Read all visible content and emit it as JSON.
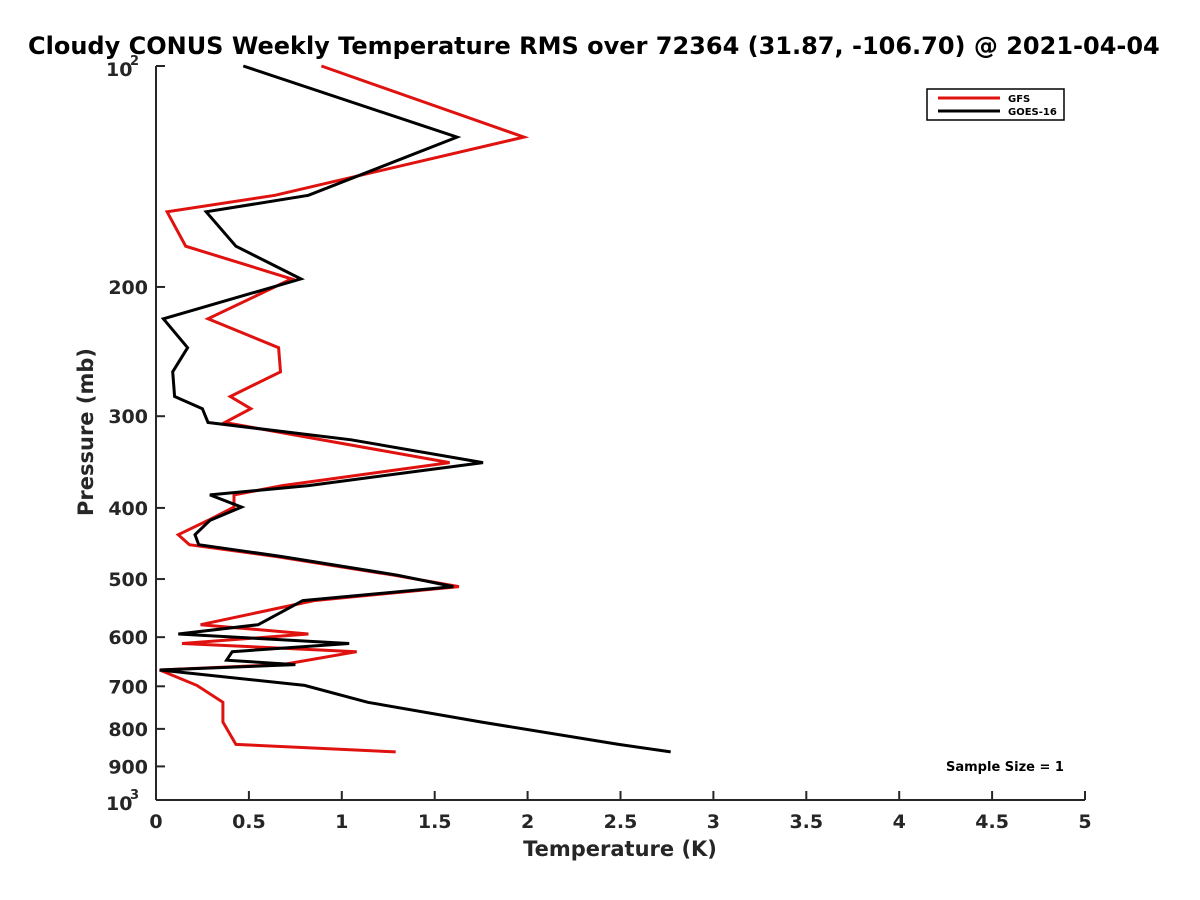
{
  "chart_data": {
    "type": "line",
    "title": "Cloudy CONUS Weekly Temperature RMS over 72364 (31.87, -106.70) @ 2021-04-04",
    "xlabel": "Temperature (K)",
    "ylabel": "Pressure (mb)",
    "xlim": [
      0,
      5
    ],
    "ylim": [
      1000,
      100
    ],
    "yscale": "log",
    "x_ticks": [
      "0",
      "0.5",
      "1",
      "1.5",
      "2",
      "2.5",
      "3",
      "3.5",
      "4",
      "4.5",
      "5"
    ],
    "y_ticks": [
      {
        "value": 100,
        "base": "10",
        "exp": "2"
      },
      {
        "value": 200,
        "label": "200"
      },
      {
        "value": 300,
        "label": "300"
      },
      {
        "value": 400,
        "label": "400"
      },
      {
        "value": 500,
        "label": "500"
      },
      {
        "value": 600,
        "label": "600"
      },
      {
        "value": 700,
        "label": "700"
      },
      {
        "value": 800,
        "label": "800"
      },
      {
        "value": 900,
        "label": "900"
      },
      {
        "value": 1000,
        "base": "10",
        "exp": "3"
      }
    ],
    "legend_position": "top-right",
    "annotation": "Sample Size = 1",
    "series": [
      {
        "name": "GFS",
        "color": "#e0120f",
        "points": [
          [
            0.89,
            100
          ],
          [
            1.98,
            125
          ],
          [
            0.64,
            150
          ],
          [
            0.06,
            158
          ],
          [
            0.16,
            176
          ],
          [
            0.73,
            195
          ],
          [
            0.28,
            221
          ],
          [
            0.66,
            242
          ],
          [
            0.67,
            261
          ],
          [
            0.4,
            282
          ],
          [
            0.51,
            293
          ],
          [
            0.37,
            306
          ],
          [
            1.58,
            347
          ],
          [
            0.68,
            373
          ],
          [
            0.42,
            384
          ],
          [
            0.42,
            399
          ],
          [
            0.28,
            416
          ],
          [
            0.12,
            435
          ],
          [
            0.18,
            449
          ],
          [
            0.65,
            466
          ],
          [
            1.28,
            494
          ],
          [
            1.63,
            512
          ],
          [
            0.85,
            535
          ],
          [
            0.24,
            577
          ],
          [
            0.82,
            594
          ],
          [
            0.14,
            612
          ],
          [
            1.08,
            628
          ],
          [
            0.68,
            654
          ],
          [
            0.02,
            665
          ],
          [
            0.22,
            698
          ],
          [
            0.36,
            736
          ],
          [
            0.36,
            783
          ],
          [
            0.43,
            840
          ],
          [
            1.29,
            860
          ]
        ]
      },
      {
        "name": "GOES-16",
        "color": "#000000",
        "points": [
          [
            0.47,
            100
          ],
          [
            1.62,
            125
          ],
          [
            0.82,
            150
          ],
          [
            0.27,
            158
          ],
          [
            0.43,
            176
          ],
          [
            0.78,
            195
          ],
          [
            0.04,
            221
          ],
          [
            0.17,
            242
          ],
          [
            0.09,
            261
          ],
          [
            0.1,
            282
          ],
          [
            0.25,
            293
          ],
          [
            0.28,
            306
          ],
          [
            1.05,
            323
          ],
          [
            1.76,
            347
          ],
          [
            0.82,
            373
          ],
          [
            0.29,
            384
          ],
          [
            0.46,
            399
          ],
          [
            0.29,
            416
          ],
          [
            0.21,
            435
          ],
          [
            0.23,
            449
          ],
          [
            0.68,
            466
          ],
          [
            1.3,
            494
          ],
          [
            1.6,
            512
          ],
          [
            0.79,
            535
          ],
          [
            0.55,
            577
          ],
          [
            0.12,
            594
          ],
          [
            1.04,
            612
          ],
          [
            0.41,
            628
          ],
          [
            0.38,
            645
          ],
          [
            0.75,
            654
          ],
          [
            0.02,
            665
          ],
          [
            0.8,
            698
          ],
          [
            1.14,
            736
          ],
          [
            1.75,
            783
          ],
          [
            2.49,
            840
          ],
          [
            2.77,
            860
          ]
        ]
      }
    ]
  }
}
